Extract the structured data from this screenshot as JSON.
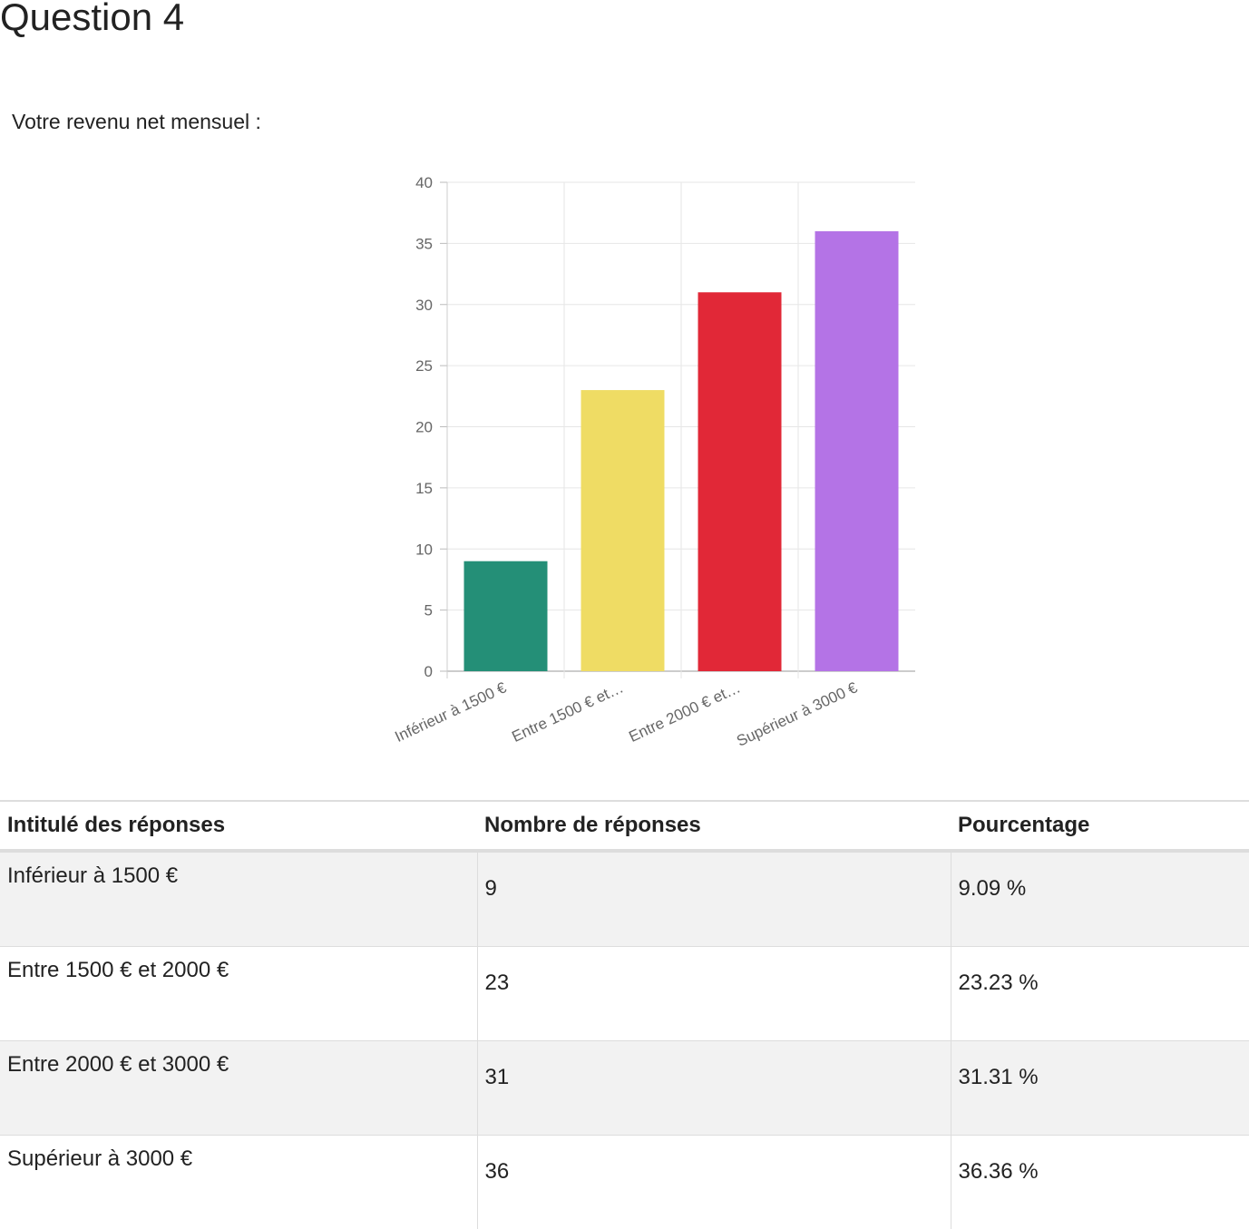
{
  "page": {
    "title": "Question 4",
    "question": "Votre revenu net mensuel :"
  },
  "chart_data": {
    "type": "bar",
    "categories": [
      "Inférieur à 1500 €",
      "Entre 1500 € et…",
      "Entre 2000 € et…",
      "Supérieur à 3000 €"
    ],
    "values": [
      9,
      23,
      31,
      36
    ],
    "colors": [
      "#248f77",
      "#efdc64",
      "#e12837",
      "#b473e6"
    ],
    "ylim": [
      0,
      40
    ],
    "yticks": [
      0,
      5,
      10,
      15,
      20,
      25,
      30,
      35,
      40
    ],
    "grid": true,
    "title": "",
    "xlabel": "",
    "ylabel": ""
  },
  "table": {
    "headers": [
      "Intitulé des réponses",
      "Nombre de réponses",
      "Pourcentage"
    ],
    "rows": [
      [
        "Inférieur à 1500 €",
        "9",
        "9.09 %"
      ],
      [
        "Entre 1500 € et 2000 €",
        "23",
        "23.23 %"
      ],
      [
        "Entre 2000 € et 3000 €",
        "31",
        "31.31 %"
      ],
      [
        "Supérieur à 3000 €",
        "36",
        "36.36 %"
      ]
    ]
  }
}
